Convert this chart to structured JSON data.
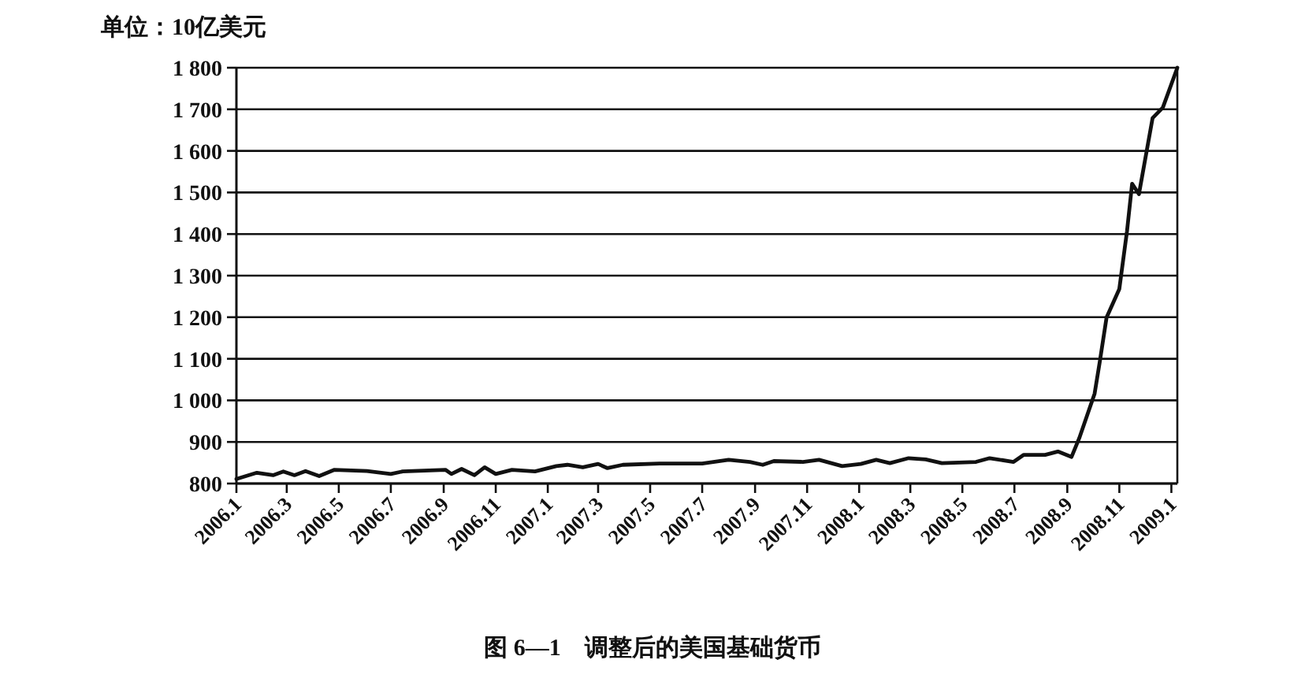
{
  "chart_data": {
    "type": "line",
    "title": "图 6—1　调整后的美国基础货币",
    "ylabel": "单位：10亿美元",
    "x": [
      "2006-01-01",
      "2006-01-25",
      "2006-02-13",
      "2006-02-25",
      "2006-03-10",
      "2006-03-23",
      "2006-04-08",
      "2006-04-26",
      "2006-06-03",
      "2006-07-01",
      "2006-07-15",
      "2006-09-03",
      "2006-09-10",
      "2006-09-22",
      "2006-10-07",
      "2006-10-19",
      "2006-11-01",
      "2006-11-20",
      "2006-12-17",
      "2007-01-11",
      "2007-01-24",
      "2007-02-11",
      "2007-03-01",
      "2007-03-12",
      "2007-03-30",
      "2007-05-12",
      "2007-07-01",
      "2007-08-01",
      "2007-08-26",
      "2007-09-10",
      "2007-09-23",
      "2007-10-27",
      "2007-11-15",
      "2007-12-12",
      "2008-01-03",
      "2008-01-21",
      "2008-02-06",
      "2008-02-28",
      "2008-03-19",
      "2008-04-07",
      "2008-05-17",
      "2008-06-02",
      "2008-06-30",
      "2008-07-12",
      "2008-08-06",
      "2008-08-21",
      "2008-09-06",
      "2008-09-15",
      "2008-10-03",
      "2008-10-09",
      "2008-10-17",
      "2008-11-01",
      "2008-11-10",
      "2008-11-16",
      "2008-11-24",
      "2008-12-10",
      "2008-12-22",
      "2009-01-08"
    ],
    "series": [
      {
        "color": "#111111",
        "values": [
          811,
          826,
          820,
          829,
          820,
          830,
          818,
          833,
          830,
          823,
          829,
          833,
          823,
          835,
          820,
          839,
          823,
          833,
          829,
          842,
          845,
          839,
          847,
          837,
          845,
          848,
          848,
          857,
          852,
          845,
          854,
          852,
          857,
          842,
          847,
          857,
          849,
          861,
          858,
          849,
          852,
          861,
          852,
          869,
          869,
          877,
          864,
          909,
          1016,
          1092,
          1199,
          1268,
          1407,
          1521,
          1496,
          1679,
          1704,
          1800
        ]
      }
    ],
    "xlim": [
      "2006-01-01",
      "2009-01-08"
    ],
    "xticks": [
      {
        "value": "2006-01-01",
        "label": "2006.1"
      },
      {
        "value": "2006-03-01",
        "label": "2006.3"
      },
      {
        "value": "2006-05-01",
        "label": "2006.5"
      },
      {
        "value": "2006-07-01",
        "label": "2006.7"
      },
      {
        "value": "2006-09-01",
        "label": "2006.9"
      },
      {
        "value": "2006-11-01",
        "label": "2006.11"
      },
      {
        "value": "2007-01-01",
        "label": "2007.1"
      },
      {
        "value": "2007-03-01",
        "label": "2007.3"
      },
      {
        "value": "2007-05-01",
        "label": "2007.5"
      },
      {
        "value": "2007-07-01",
        "label": "2007.7"
      },
      {
        "value": "2007-09-01",
        "label": "2007.9"
      },
      {
        "value": "2007-11-01",
        "label": "2007.11"
      },
      {
        "value": "2008-01-01",
        "label": "2008.1"
      },
      {
        "value": "2008-03-01",
        "label": "2008.3"
      },
      {
        "value": "2008-05-01",
        "label": "2008.5"
      },
      {
        "value": "2008-07-01",
        "label": "2008.7"
      },
      {
        "value": "2008-09-01",
        "label": "2008.9"
      },
      {
        "value": "2008-11-01",
        "label": "2008.11"
      },
      {
        "value": "2009-01-01",
        "label": "2009.1"
      }
    ],
    "ylim": [
      800,
      1800
    ],
    "yticks": [
      800,
      900,
      {
        "value": 1000,
        "label": "1 000"
      },
      {
        "value": 1100,
        "label": "1 100"
      },
      {
        "value": 1200,
        "label": "1 200"
      },
      {
        "value": 1300,
        "label": "1 300"
      },
      {
        "value": 1400,
        "label": "1 400"
      },
      {
        "value": 1500,
        "label": "1 500"
      },
      {
        "value": 1600,
        "label": "1 600"
      },
      {
        "value": 1700,
        "label": "1 700"
      },
      {
        "value": 1800,
        "label": "1 800"
      }
    ],
    "grid": "y",
    "marker": "none",
    "line_style": "solid"
  }
}
